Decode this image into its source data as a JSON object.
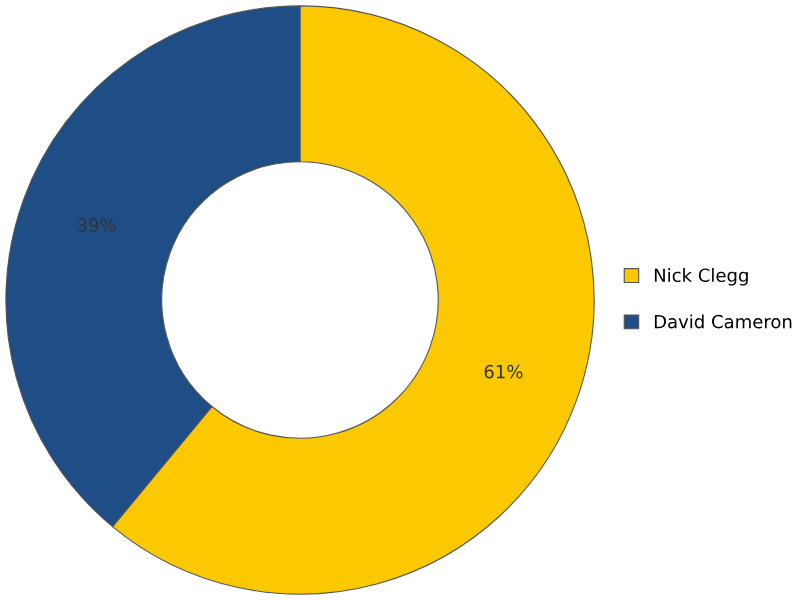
{
  "chart_data": {
    "type": "donut",
    "categories": [
      "Nick Clegg",
      "David Cameron"
    ],
    "values": [
      61,
      39
    ],
    "colors": [
      "#fcc800",
      "#1f4e86"
    ],
    "value_labels": [
      "61%",
      "39%"
    ],
    "legend": "right"
  }
}
